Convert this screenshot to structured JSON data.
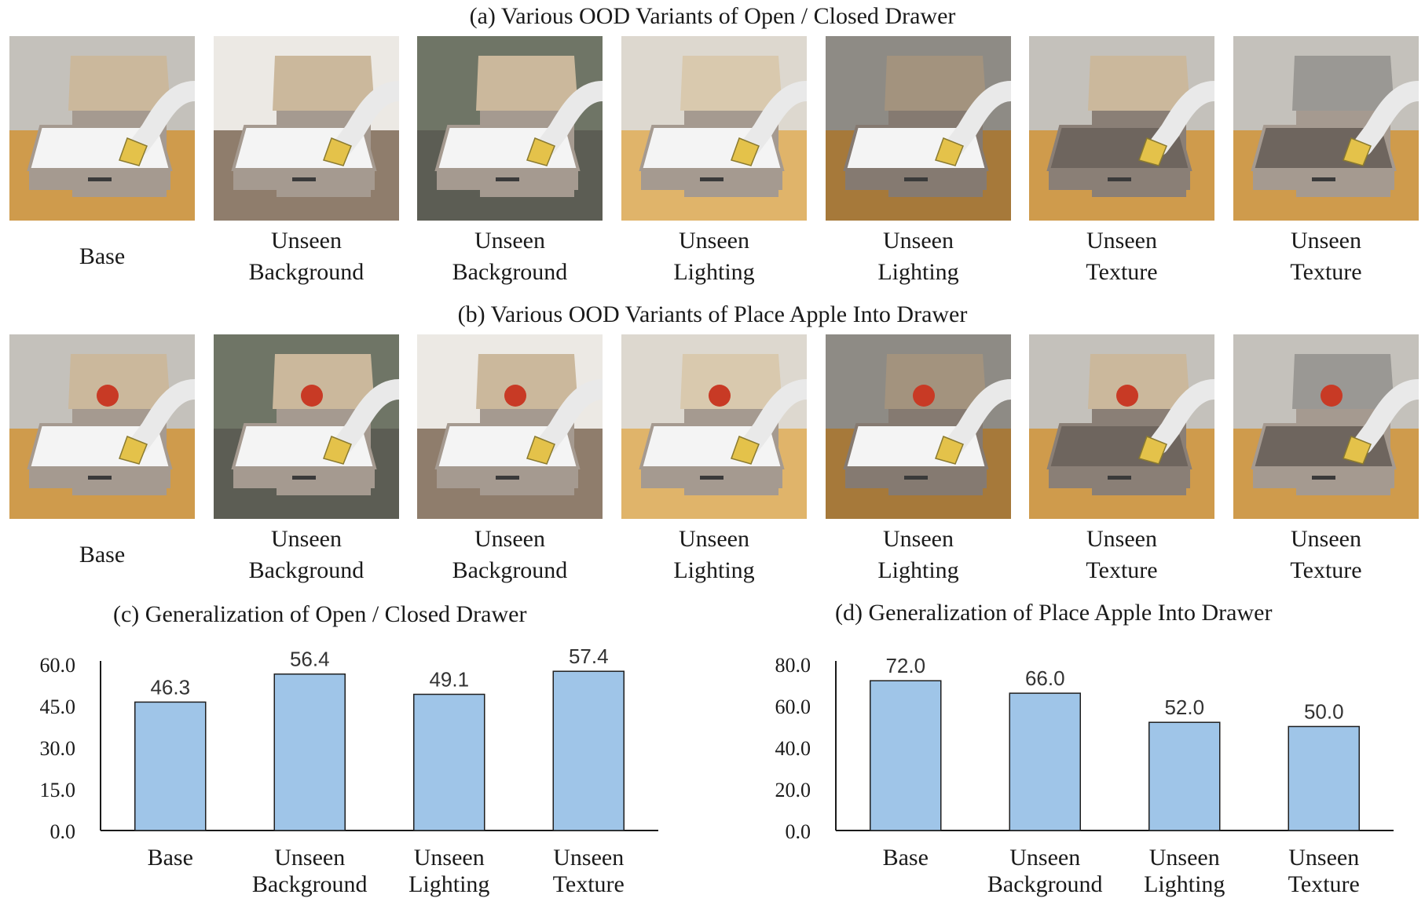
{
  "panels": {
    "a": {
      "title": "(a) Various OOD Variants of Open / Closed Drawer",
      "items": [
        {
          "caption": [
            "Base"
          ],
          "variant": "base"
        },
        {
          "caption": [
            "Unseen",
            "Background"
          ],
          "variant": "background-room"
        },
        {
          "caption": [
            "Unseen",
            "Background"
          ],
          "variant": "background-dark"
        },
        {
          "caption": [
            "Unseen",
            "Lighting"
          ],
          "variant": "lighting-bright"
        },
        {
          "caption": [
            "Unseen",
            "Lighting"
          ],
          "variant": "lighting-dim"
        },
        {
          "caption": [
            "Unseen",
            "Texture"
          ],
          "variant": "texture-dark-drawer"
        },
        {
          "caption": [
            "Unseen",
            "Texture"
          ],
          "variant": "texture-marble"
        }
      ]
    },
    "b": {
      "title": "(b) Various OOD Variants of Place Apple Into Drawer",
      "items": [
        {
          "caption": [
            "Base"
          ],
          "variant": "base"
        },
        {
          "caption": [
            "Unseen",
            "Background"
          ],
          "variant": "background-dark"
        },
        {
          "caption": [
            "Unseen",
            "Background"
          ],
          "variant": "background-room"
        },
        {
          "caption": [
            "Unseen",
            "Lighting"
          ],
          "variant": "lighting-bright"
        },
        {
          "caption": [
            "Unseen",
            "Lighting"
          ],
          "variant": "lighting-dim"
        },
        {
          "caption": [
            "Unseen",
            "Texture"
          ],
          "variant": "texture-dark-drawer"
        },
        {
          "caption": [
            "Unseen",
            "Texture"
          ],
          "variant": "texture-marble"
        }
      ]
    }
  },
  "colors": {
    "bar_fill": "#9fc5e8",
    "bar_stroke": "#1f1f1f",
    "drawer": "#a59a90",
    "drawer_top": "#cbb89c",
    "floor": "#cf9b4c",
    "wall": "#c4c1bb",
    "robot": "#e9e9e9",
    "gripper": "#e4c24a",
    "apple": "#c83a25",
    "marble": "#9a9894"
  },
  "chart_data": [
    {
      "type": "bar",
      "title": "(c) Generalization of Open / Closed Drawer",
      "categories": [
        [
          "Base"
        ],
        [
          "Unseen",
          "Background"
        ],
        [
          "Unseen",
          "Lighting"
        ],
        [
          "Unseen",
          "Texture"
        ]
      ],
      "values": [
        46.3,
        56.4,
        49.1,
        57.4
      ],
      "value_labels": [
        "46.3",
        "56.4",
        "49.1",
        "57.4"
      ],
      "yticks": [
        "0.0",
        "15.0",
        "30.0",
        "45.0",
        "60.0"
      ],
      "ytick_values": [
        0,
        15,
        30,
        45,
        60
      ],
      "ylim": [
        0,
        60
      ],
      "grid": false,
      "legend": "none"
    },
    {
      "type": "bar",
      "title": "(d) Generalization of Place Apple Into Drawer",
      "categories": [
        [
          "Base"
        ],
        [
          "Unseen",
          "Background"
        ],
        [
          "Unseen",
          "Lighting"
        ],
        [
          "Unseen",
          "Texture"
        ]
      ],
      "values": [
        72.0,
        66.0,
        52.0,
        50.0
      ],
      "value_labels": [
        "72.0",
        "66.0",
        "52.0",
        "50.0"
      ],
      "yticks": [
        "0.0",
        "20.0",
        "40.0",
        "60.0",
        "80.0"
      ],
      "ytick_values": [
        0,
        20,
        40,
        60,
        80
      ],
      "ylim": [
        0,
        80
      ],
      "grid": false,
      "legend": "none"
    }
  ]
}
